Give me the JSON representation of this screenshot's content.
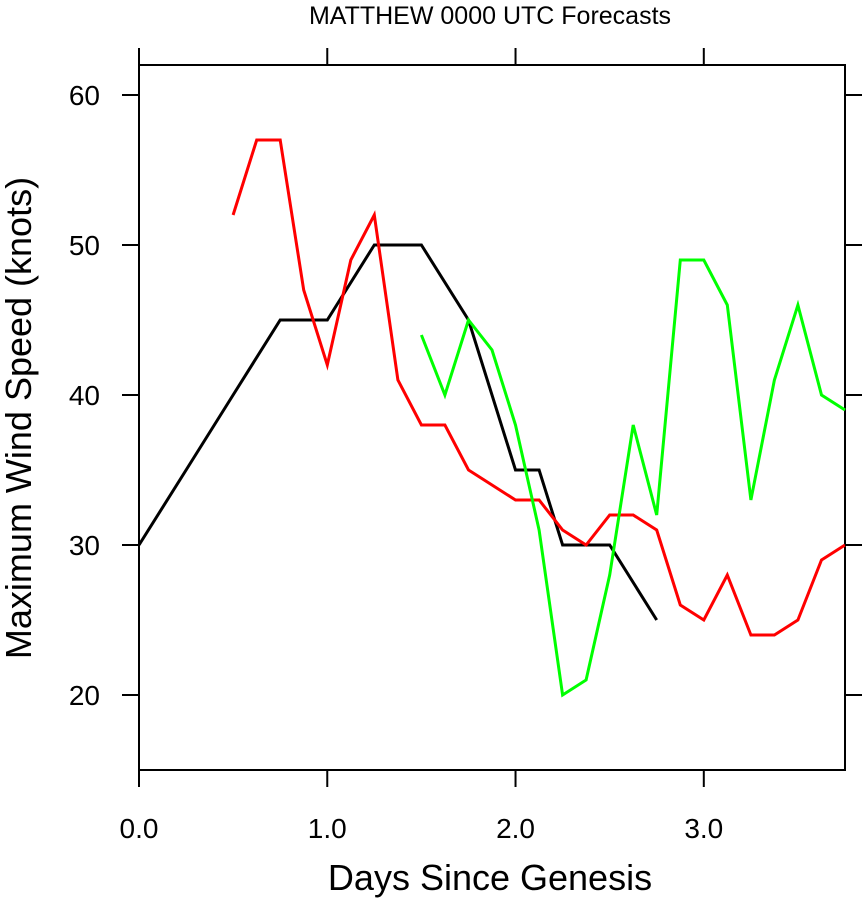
{
  "chart_data": {
    "type": "line",
    "title": "MATTHEW 0000 UTC Forecasts",
    "xlabel": "Days Since Genesis",
    "ylabel": "Maximum Wind Speed (knots)",
    "xlim": [
      0,
      3.75
    ],
    "ylim": [
      15,
      62
    ],
    "x_ticks": [
      0,
      1,
      2,
      3
    ],
    "x_tick_labels": [
      "0.0",
      "1.0",
      "2.0",
      "3.0"
    ],
    "y_ticks": [
      20,
      30,
      40,
      50,
      60
    ],
    "y_tick_labels": [
      "20",
      "30",
      "40",
      "50",
      "60"
    ],
    "grid": false,
    "legend": "none",
    "series": [
      {
        "color": "#000000",
        "x": [
          0,
          0.25,
          0.5,
          0.75,
          1.0,
          1.25,
          1.5,
          1.75,
          2.0,
          2.125,
          2.25,
          2.5,
          2.75
        ],
        "y": [
          30,
          35,
          40,
          45,
          45,
          50,
          50,
          45,
          35,
          35,
          30,
          30,
          25
        ]
      },
      {
        "color": "#ff0000",
        "x": [
          0.5,
          0.625,
          0.75,
          0.875,
          1.0,
          1.125,
          1.25,
          1.375,
          1.5,
          1.625,
          1.75,
          1.875,
          2.0,
          2.125,
          2.25,
          2.375,
          2.5,
          2.625,
          2.75,
          2.875,
          3.0,
          3.125,
          3.25,
          3.375,
          3.5,
          3.625,
          3.75
        ],
        "y": [
          52,
          57,
          57,
          47,
          42,
          49,
          52,
          41,
          38,
          38,
          35,
          34,
          33,
          33,
          31,
          30,
          32,
          32,
          31,
          26,
          25,
          28,
          24,
          24,
          25,
          29,
          30
        ]
      },
      {
        "color": "#00ff00",
        "x": [
          1.5,
          1.625,
          1.75,
          1.875,
          2.0,
          2.125,
          2.25,
          2.375,
          2.5,
          2.625,
          2.75,
          2.875,
          3.0,
          3.125,
          3.25,
          3.375,
          3.5,
          3.625,
          3.75
        ],
        "y": [
          44,
          40,
          45,
          43,
          38,
          31,
          20,
          21,
          28,
          38,
          32,
          49,
          49,
          46,
          33,
          41,
          46,
          40,
          39
        ]
      }
    ]
  }
}
